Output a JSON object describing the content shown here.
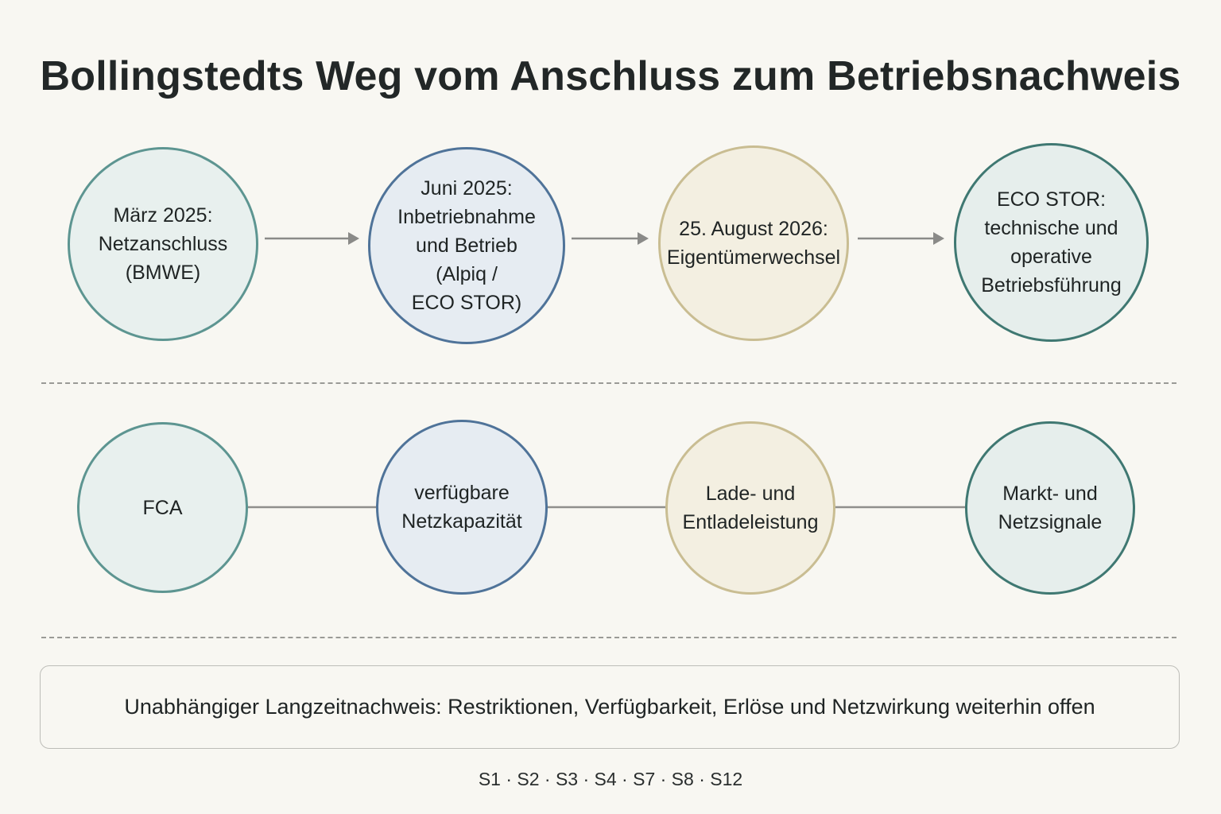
{
  "title": "Bollingstedts Weg vom Anschluss zum Betriebsnachweis",
  "timeline": [
    {
      "label": "März 2025:\nNetzanschluss\n(BMWE)",
      "color": "#5d9591"
    },
    {
      "label": "Juni 2025:\nInbetriebnahme\nund Betrieb\n(Alpiq /\nECO STOR)",
      "color": "#4f7399"
    },
    {
      "label": "25. August 2026:\nEigentümerwechsel",
      "color": "#c9bd92"
    },
    {
      "label": "ECO STOR:\ntechnische und\noperative\nBetriebsführung",
      "color": "#3f7872"
    }
  ],
  "factors": [
    {
      "label": "FCA",
      "color": "#5d9591"
    },
    {
      "label": "verfügbare\nNetzkapazität",
      "color": "#4f7399"
    },
    {
      "label": "Lade- und\nEntladeleistung",
      "color": "#c9bd92"
    },
    {
      "label": "Markt- und\nNetzsignale",
      "color": "#3f7872"
    }
  ],
  "note": "Unabhängiger Langzeitnachweis: Restriktionen, Verfügbarkeit, Erlöse und Netzwirkung weiterhin offen",
  "sources": "S1 · S2 · S3 · S4 · S7 · S8 · S12"
}
